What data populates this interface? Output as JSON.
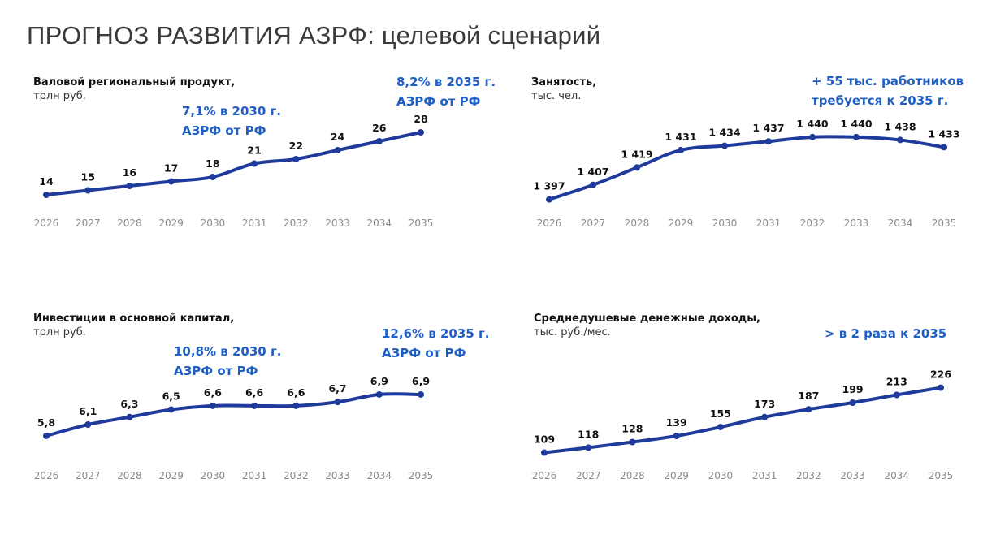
{
  "title": "ПРОГНОЗ РАЗВИТИЯ АЗРФ: целевой сценарий",
  "colors": {
    "line": "#1e3a9a",
    "annotation": "#1f5fc4"
  },
  "chart_data": [
    {
      "type": "line",
      "title": "Валовой региональный продукт,",
      "unit": "трлн руб.",
      "x": [
        "2026",
        "2027",
        "2028",
        "2029",
        "2030",
        "2031",
        "2032",
        "2033",
        "2034",
        "2035"
      ],
      "values": [
        14,
        15,
        16,
        17,
        18,
        21,
        22,
        24,
        26,
        28
      ],
      "labels": [
        "14",
        "15",
        "16",
        "17",
        "18",
        "21",
        "22",
        "24",
        "26",
        "28"
      ],
      "ylim": [
        0,
        40
      ],
      "annotations": [
        [
          "7,1% в 2030 г.",
          "АЗРФ от РФ"
        ],
        [
          "8,2% в 2035 г.",
          "АЗРФ от РФ"
        ]
      ]
    },
    {
      "type": "line",
      "title": "Занятость,",
      "unit": "тыс. чел.",
      "x": [
        "2026",
        "2027",
        "2028",
        "2029",
        "2030",
        "2031",
        "2032",
        "2033",
        "2034",
        "2035"
      ],
      "values": [
        1397,
        1407,
        1419,
        1431,
        1434,
        1437,
        1440,
        1440,
        1438,
        1433
      ],
      "labels": [
        "1 397",
        "1 407",
        "1 419",
        "1 431",
        "1 434",
        "1 437",
        "1 440",
        "1 440",
        "1 438",
        "1 433"
      ],
      "ylim": [
        1380,
        1450
      ],
      "annotations": [
        [
          "+ 55 тыс. работников",
          "требуется к 2035 г."
        ]
      ]
    },
    {
      "type": "line",
      "title": "Инвестиции в основной капитал,",
      "unit": "трлн руб.",
      "x": [
        "2026",
        "2027",
        "2028",
        "2029",
        "2030",
        "2031",
        "2032",
        "2033",
        "2034",
        "2035"
      ],
      "values": [
        5.8,
        6.1,
        6.3,
        6.5,
        6.6,
        6.6,
        6.6,
        6.7,
        6.9,
        6.9
      ],
      "labels": [
        "5,8",
        "6,1",
        "6,3",
        "6,5",
        "6,6",
        "6,6",
        "6,6",
        "6,7",
        "6,9",
        "6,9"
      ],
      "ylim": [
        5,
        8
      ],
      "annotations": [
        [
          "10,8% в 2030 г.",
          "АЗРФ от РФ"
        ],
        [
          "12,6% в 2035 г.",
          "АЗРФ от РФ"
        ]
      ]
    },
    {
      "type": "line",
      "title": "Среднедушевые денежные доходы,",
      "unit": "тыс. руб./мес.",
      "x": [
        "2026",
        "2027",
        "2028",
        "2029",
        "2030",
        "2031",
        "2032",
        "2033",
        "2034",
        "2035"
      ],
      "values": [
        109,
        118,
        128,
        139,
        155,
        173,
        187,
        199,
        213,
        226
      ],
      "labels": [
        "109",
        "118",
        "128",
        "139",
        "155",
        "173",
        "187",
        "199",
        "213",
        "226"
      ],
      "ylim": [
        0,
        300
      ],
      "annotations": [
        [
          "> в 2 раза к 2035"
        ]
      ]
    }
  ]
}
